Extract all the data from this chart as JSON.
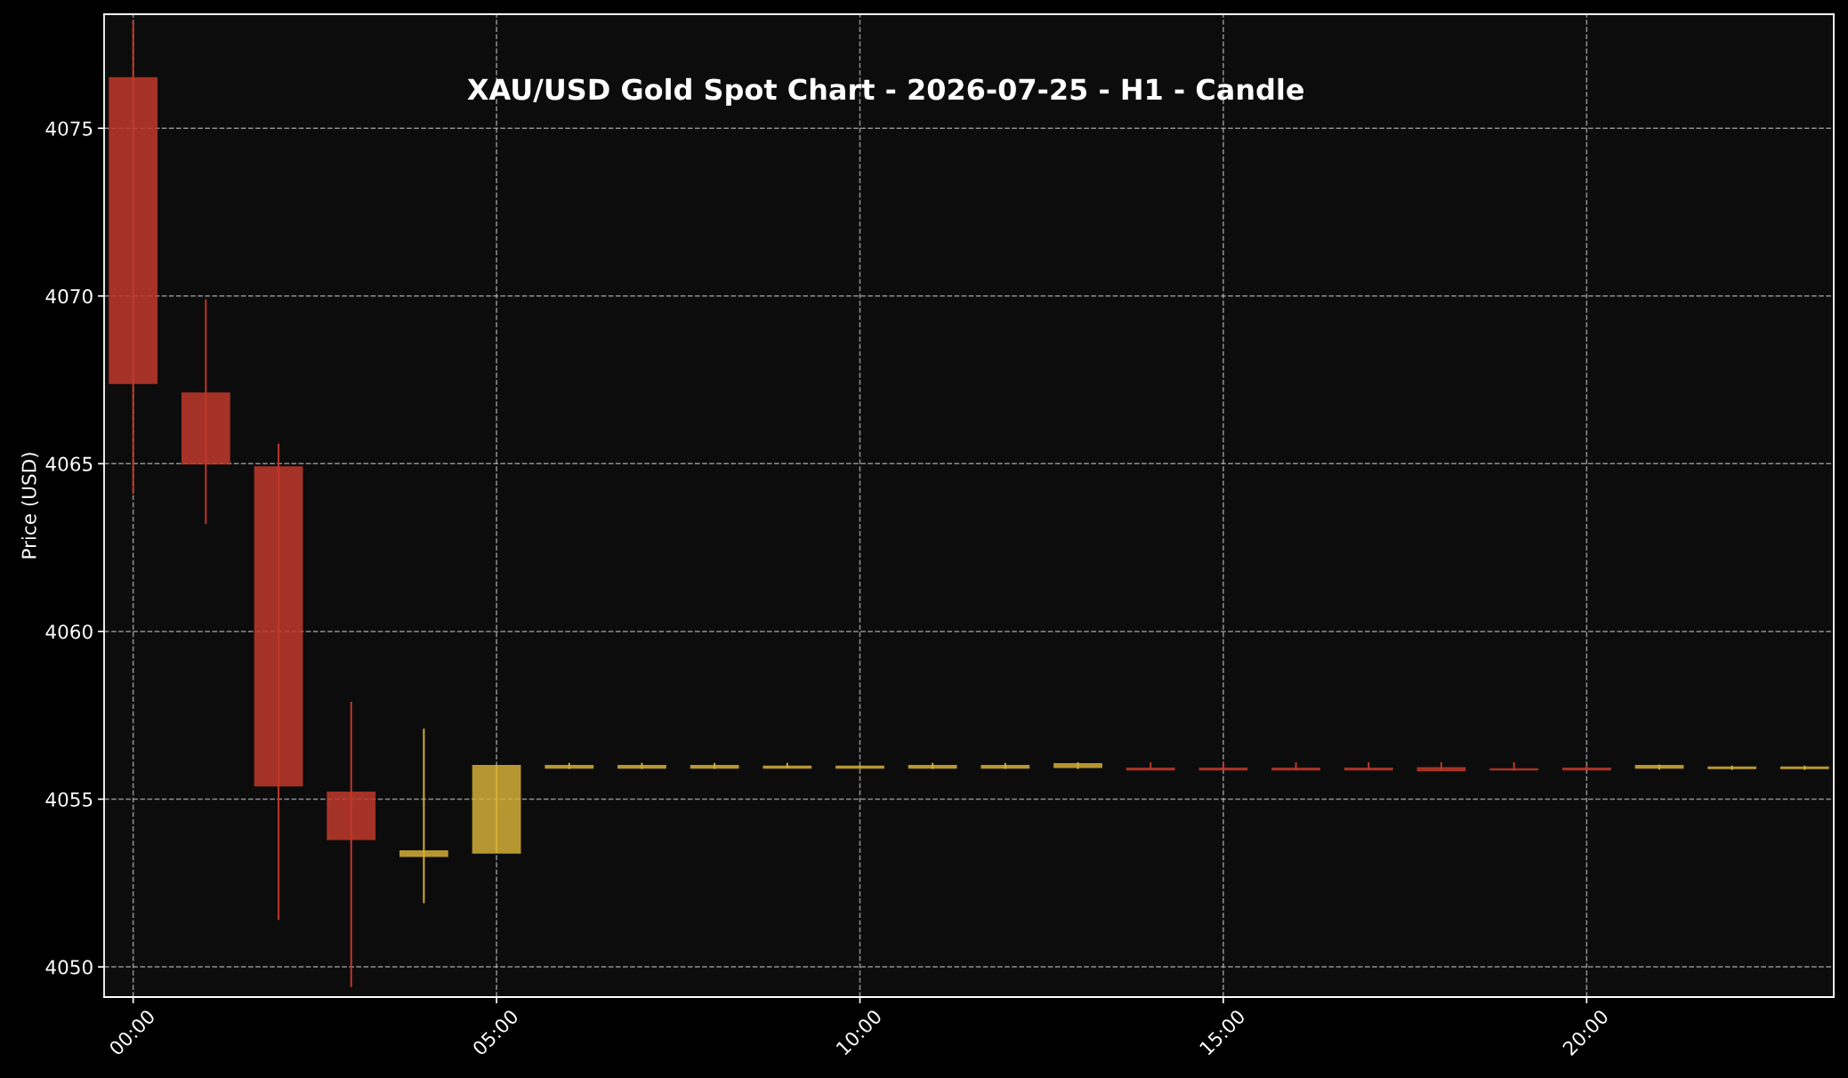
{
  "chart_data": {
    "type": "candlestick",
    "title": "XAU/USD Gold Spot Chart - 2026-07-25 - H1 - Candle",
    "ylabel": "Price (USD)",
    "x": [
      0,
      1,
      2,
      3,
      4,
      5,
      6,
      7,
      8,
      9,
      10,
      11,
      12,
      13,
      14,
      15,
      16,
      17,
      18,
      19,
      20,
      21,
      22,
      23
    ],
    "ohlc": [
      [
        4076.5,
        4078.2,
        4064.1,
        4067.4
      ],
      [
        4067.1,
        4069.9,
        4063.2,
        4065.0
      ],
      [
        4064.9,
        4065.6,
        4051.4,
        4055.4
      ],
      [
        4055.2,
        4057.9,
        4049.4,
        4053.8
      ],
      [
        4053.3,
        4057.1,
        4051.9,
        4053.45
      ],
      [
        4053.4,
        4056.0,
        4053.4,
        4056.0
      ],
      [
        4055.93,
        4056.08,
        4055.9,
        4056.0
      ],
      [
        4055.93,
        4056.08,
        4055.9,
        4056.0
      ],
      [
        4055.93,
        4056.08,
        4055.9,
        4056.0
      ],
      [
        4055.93,
        4056.08,
        4055.93,
        4055.98
      ],
      [
        4055.93,
        4056.0,
        4055.93,
        4055.98
      ],
      [
        4055.93,
        4056.08,
        4055.9,
        4056.0
      ],
      [
        4055.93,
        4056.08,
        4055.9,
        4056.0
      ],
      [
        4055.95,
        4056.1,
        4055.9,
        4056.05
      ],
      [
        4055.92,
        4056.1,
        4055.88,
        4055.88
      ],
      [
        4055.92,
        4056.1,
        4055.88,
        4055.88
      ],
      [
        4055.92,
        4056.1,
        4055.88,
        4055.88
      ],
      [
        4055.92,
        4056.1,
        4055.88,
        4055.88
      ],
      [
        4055.93,
        4056.1,
        4055.85,
        4055.85
      ],
      [
        4055.9,
        4056.1,
        4055.85,
        4055.88
      ],
      [
        4055.92,
        4056.0,
        4055.88,
        4055.88
      ],
      [
        4055.93,
        4056.03,
        4055.88,
        4056.0
      ],
      [
        4055.92,
        4056.0,
        4055.87,
        4055.95
      ],
      [
        4055.92,
        4056.0,
        4055.87,
        4055.95
      ]
    ],
    "colors": [
      "#c0392b",
      "#c0392b",
      "#c0392b",
      "#c0392b",
      "#d4af37",
      "#d4af37",
      "#d4af37",
      "#d4af37",
      "#d4af37",
      "#d4af37",
      "#d4af37",
      "#d4af37",
      "#d4af37",
      "#d4af37",
      "#c0392b",
      "#c0392b",
      "#c0392b",
      "#c0392b",
      "#c0392b",
      "#c0392b",
      "#c0392b",
      "#d4af37",
      "#d4af37",
      "#d4af37"
    ],
    "xlim": [
      -0.4,
      23.4
    ],
    "xticks": [
      {
        "value": 0,
        "label": "00:00"
      },
      {
        "value": 5,
        "label": "05:00"
      },
      {
        "value": 10,
        "label": "10:00"
      },
      {
        "value": 15,
        "label": "15:00"
      },
      {
        "value": 20,
        "label": "20:00"
      }
    ],
    "ylim": [
      4049.1,
      4078.4
    ],
    "yticks": [
      4050,
      4055,
      4060,
      4065,
      4070,
      4075
    ],
    "grid": true
  }
}
